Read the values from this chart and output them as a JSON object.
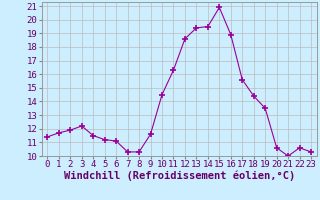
{
  "x": [
    0,
    1,
    2,
    3,
    4,
    5,
    6,
    7,
    8,
    9,
    10,
    11,
    12,
    13,
    14,
    15,
    16,
    17,
    18,
    19,
    20,
    21,
    22,
    23
  ],
  "y": [
    11.4,
    11.7,
    11.9,
    12.2,
    11.5,
    11.2,
    11.1,
    10.3,
    10.3,
    11.6,
    14.5,
    16.3,
    18.6,
    19.4,
    19.5,
    20.9,
    18.9,
    15.6,
    14.4,
    13.5,
    10.6,
    10.0,
    10.6,
    10.3
  ],
  "line_color": "#990099",
  "marker": "+",
  "marker_size": 4,
  "bg_color": "#cceeff",
  "grid_color": "#bbbbbb",
  "xlabel": "Windchill (Refroidissement éolien,°C)",
  "ylim": [
    10,
    21
  ],
  "xlim": [
    -0.5,
    23.5
  ],
  "yticks": [
    10,
    11,
    12,
    13,
    14,
    15,
    16,
    17,
    18,
    19,
    20,
    21
  ],
  "xticks": [
    0,
    1,
    2,
    3,
    4,
    5,
    6,
    7,
    8,
    9,
    10,
    11,
    12,
    13,
    14,
    15,
    16,
    17,
    18,
    19,
    20,
    21,
    22,
    23
  ],
  "tick_fontsize": 6.5,
  "xlabel_fontsize": 7.5
}
